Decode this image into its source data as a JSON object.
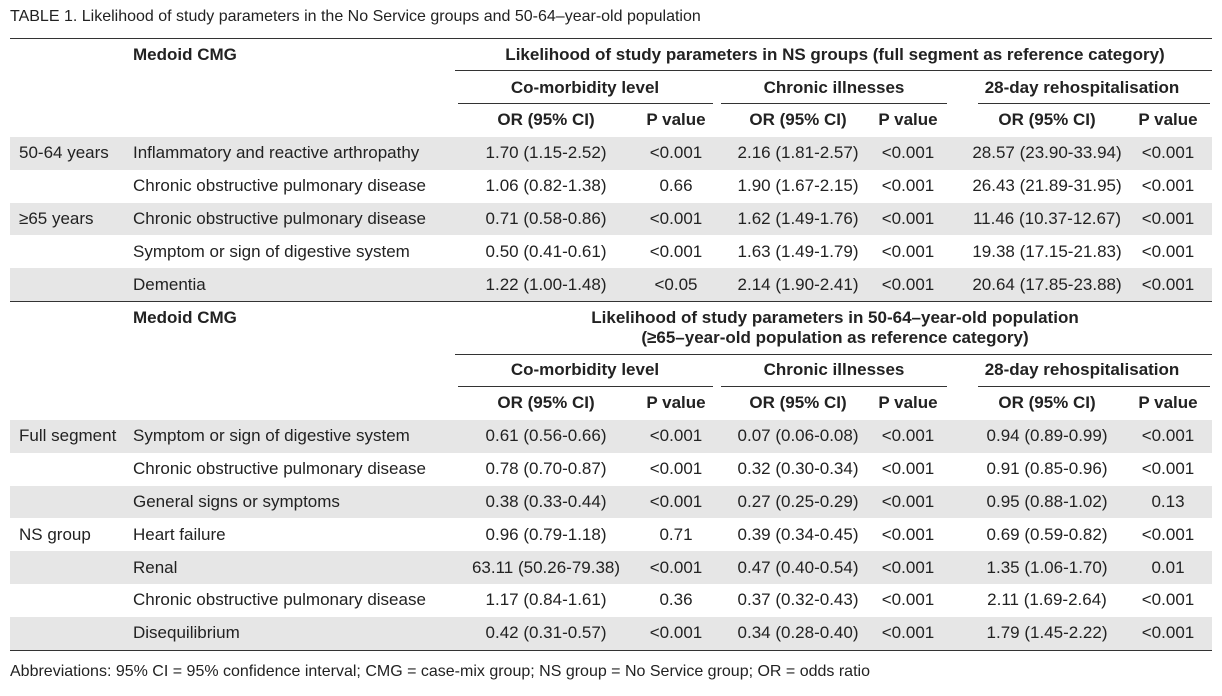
{
  "title": "TABLE 1. Likelihood of study parameters in the No Service groups and 50-64–year-old population",
  "sections": [
    {
      "cmg_header": "Medoid CMG",
      "group_header": [
        "Likelihood of study parameters in NS groups (full segment as reference category)"
      ],
      "subgroups": [
        "Co-morbidity level",
        "Chronic illnesses",
        "28-day rehospitalisation"
      ],
      "columns": [
        "OR (95% CI)",
        "P value",
        "OR (95% CI)",
        "P value",
        "OR (95% CI)",
        "P value"
      ],
      "rows": [
        [
          "50-64 years",
          "Inflammatory and reactive arthropathy",
          "1.70 (1.15-2.52)",
          "<0.001",
          "2.16 (1.81-2.57)",
          "<0.001",
          "28.57 (23.90-33.94)",
          "<0.001"
        ],
        [
          null,
          "Chronic obstructive pulmonary disease",
          "1.06 (0.82-1.38)",
          "0.66",
          "1.90 (1.67-2.15)",
          "<0.001",
          "26.43 (21.89-31.95)",
          "<0.001"
        ],
        [
          "≥65 years",
          "Chronic obstructive pulmonary disease",
          "0.71 (0.58-0.86)",
          "<0.001",
          "1.62 (1.49-1.76)",
          "<0.001",
          "11.46 (10.37-12.67)",
          "<0.001"
        ],
        [
          null,
          "Symptom or sign of digestive system",
          "0.50 (0.41-0.61)",
          "<0.001",
          "1.63 (1.49-1.79)",
          "<0.001",
          "19.38 (17.15-21.83)",
          "<0.001"
        ],
        [
          null,
          "Dementia",
          "1.22 (1.00-1.48)",
          "<0.05",
          "2.14 (1.90-2.41)",
          "<0.001",
          "20.64 (17.85-23.88)",
          "<0.001"
        ]
      ]
    },
    {
      "cmg_header": "Medoid CMG",
      "group_header": [
        "Likelihood of study parameters in 50-64–year-old population",
        "(≥65–year-old population as reference category)"
      ],
      "subgroups": [
        "Co-morbidity level",
        "Chronic illnesses",
        "28-day rehospitalisation"
      ],
      "columns": [
        "OR (95% CI)",
        "P value",
        "OR (95% CI)",
        "P value",
        "OR (95% CI)",
        "P value"
      ],
      "rows": [
        [
          "Full segment",
          "Symptom or sign of digestive system",
          "0.61 (0.56-0.66)",
          "<0.001",
          "0.07 (0.06-0.08)",
          "<0.001",
          "0.94 (0.89-0.99)",
          "<0.001"
        ],
        [
          null,
          "Chronic obstructive pulmonary disease",
          "0.78 (0.70-0.87)",
          "<0.001",
          "0.32 (0.30-0.34)",
          "<0.001",
          "0.91 (0.85-0.96)",
          "<0.001"
        ],
        [
          null,
          "General signs or symptoms",
          "0.38 (0.33-0.44)",
          "<0.001",
          "0.27 (0.25-0.29)",
          "<0.001",
          "0.95 (0.88-1.02)",
          "0.13"
        ],
        [
          "NS group",
          "Heart failure",
          "0.96 (0.79-1.18)",
          "0.71",
          "0.39 (0.34-0.45)",
          "<0.001",
          "0.69 (0.59-0.82)",
          "<0.001"
        ],
        [
          null,
          "Renal",
          "63.11 (50.26-79.38)",
          "<0.001",
          "0.47 (0.40-0.54)",
          "<0.001",
          "1.35 (1.06-1.70)",
          "0.01"
        ],
        [
          null,
          "Chronic obstructive pulmonary disease",
          "1.17 (0.84-1.61)",
          "0.36",
          "0.37 (0.32-0.43)",
          "<0.001",
          "2.11 (1.69-2.64)",
          "<0.001"
        ],
        [
          null,
          "Disequilibrium",
          "0.42 (0.31-0.57)",
          "<0.001",
          "0.34 (0.28-0.40)",
          "<0.001",
          "1.79 (1.45-2.22)",
          "<0.001"
        ]
      ]
    }
  ],
  "footnote": "Abbreviations: 95% CI = 95% confidence interval; CMG = case-mix group; NS group = No Service group; OR = odds ratio"
}
